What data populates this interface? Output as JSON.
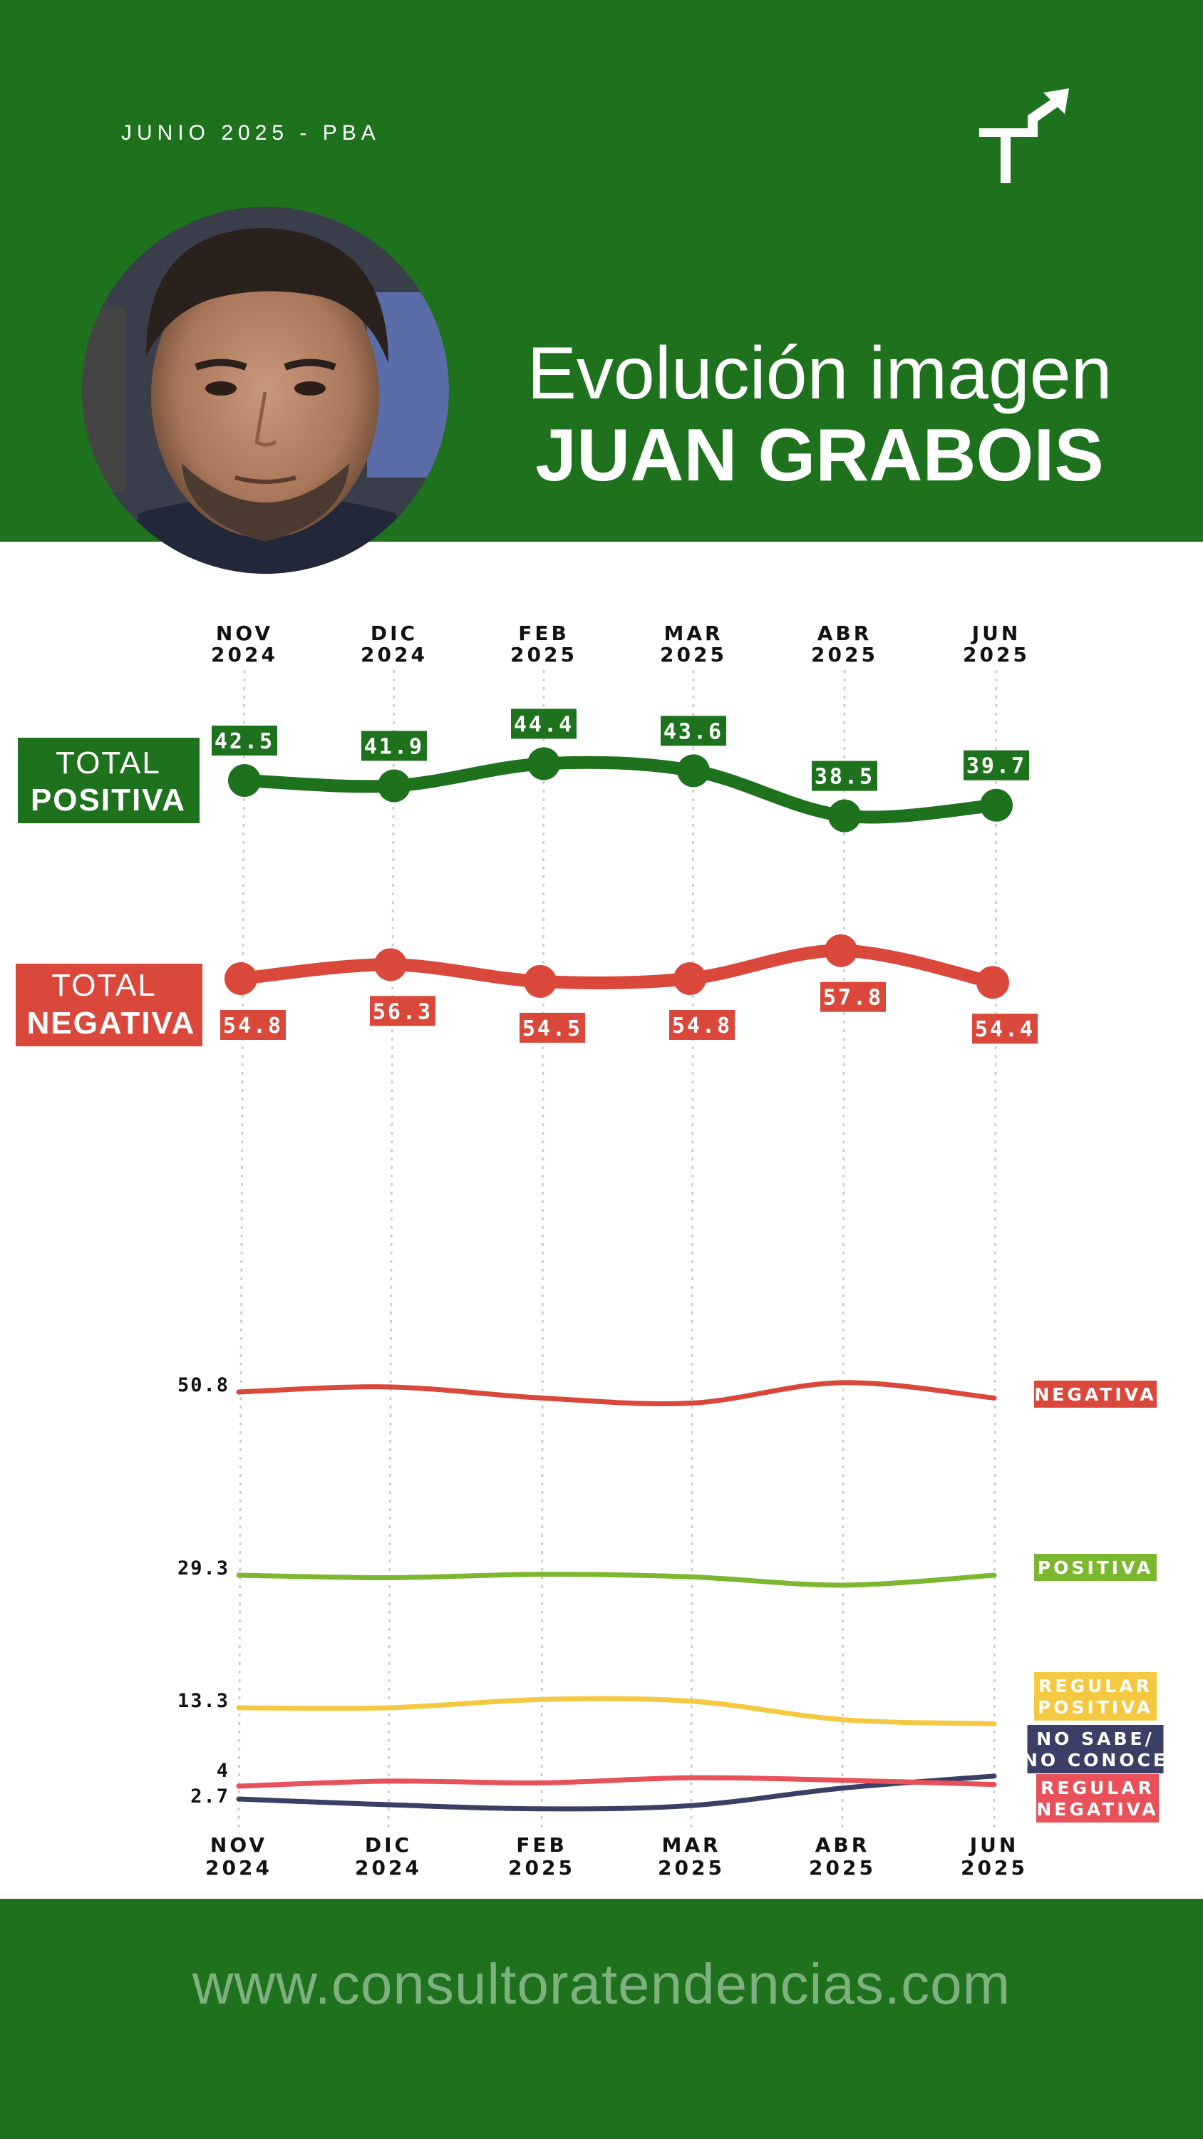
{
  "header": {
    "date_tag": "JUNIO 2025 - PBA",
    "title_line1": "Evolución imagen",
    "title_line2": "JUAN GRABOIS",
    "logo_icon": "tendencias-logo-icon",
    "portrait": "portrait-photo"
  },
  "footer": {
    "url": "www.consultoratendencias.com"
  },
  "colors": {
    "brand_green": "#1e721e",
    "negative_red": "#d9483b",
    "positive_light_green": "#7cb82f",
    "regular_positive_yellow": "#f5c842",
    "no_sabe_navy": "#3b3f66",
    "regular_negative_red": "#e8505a"
  },
  "chart_data": [
    {
      "type": "line",
      "categories": [
        [
          "NOV",
          "2024"
        ],
        [
          "DIC",
          "2024"
        ],
        [
          "FEB",
          "2025"
        ],
        [
          "MAR",
          "2025"
        ],
        [
          "ABR",
          "2025"
        ],
        [
          "JUN",
          "2025"
        ]
      ],
      "series": [
        {
          "name": [
            "TOTAL",
            "POSITIVA"
          ],
          "values": [
            42.5,
            41.9,
            44.4,
            43.6,
            38.5,
            39.7
          ]
        },
        {
          "name": [
            "TOTAL",
            "NEGATIVA"
          ],
          "values": [
            54.8,
            56.3,
            54.5,
            54.8,
            57.8,
            54.4
          ]
        }
      ]
    },
    {
      "type": "line",
      "categories": [
        [
          "NOV",
          "2024"
        ],
        [
          "DIC",
          "2024"
        ],
        [
          "FEB",
          "2025"
        ],
        [
          "MAR",
          "2025"
        ],
        [
          "ABR",
          "2025"
        ],
        [
          "JUN",
          "2025"
        ]
      ],
      "first_point_labels": [
        "50.8",
        "29.3",
        "13.3",
        "4",
        "2.7"
      ],
      "series": [
        {
          "name": [
            "NEGATIVA"
          ],
          "values": [
            50.8,
            51.4,
            50.1,
            49.5,
            51.9,
            50.1
          ]
        },
        {
          "name": [
            "POSITIVA"
          ],
          "values": [
            29.3,
            29.0,
            29.4,
            29.1,
            28.1,
            29.3
          ]
        },
        {
          "name": [
            "REGULAR",
            "POSITIVA"
          ],
          "values": [
            13.3,
            13.3,
            14.3,
            14.1,
            11.9,
            11.4
          ]
        },
        {
          "name": [
            "NO SABE/",
            "NO CONOCE"
          ],
          "values": [
            2.7,
            2.0,
            1.5,
            1.9,
            3.8,
            5.2
          ]
        },
        {
          "name": [
            "REGULAR",
            "NEGATIVA"
          ],
          "values": [
            4.0,
            4.6,
            4.4,
            5.0,
            4.7,
            4.2
          ]
        }
      ]
    }
  ]
}
